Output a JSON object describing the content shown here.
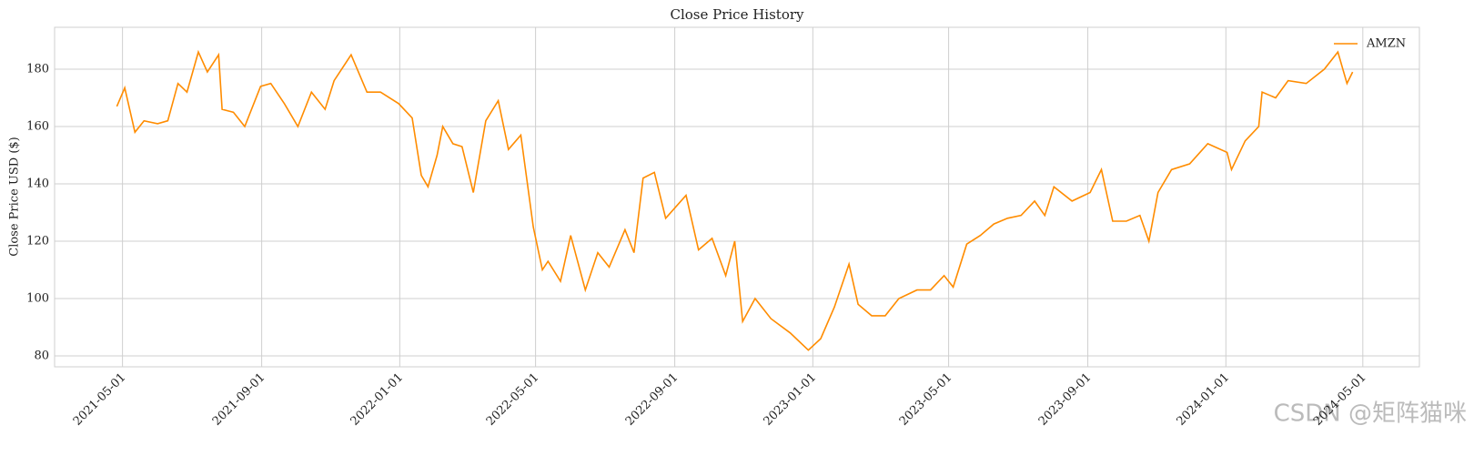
{
  "chart_data": {
    "type": "line",
    "title": "Close Price History",
    "ylabel": "Close Price USD ($)",
    "x": [
      "2021-04-26",
      "2021-05-03",
      "2021-05-12",
      "2021-05-20",
      "2021-06-01",
      "2021-06-10",
      "2021-06-19",
      "2021-06-27",
      "2021-07-07",
      "2021-07-15",
      "2021-07-25",
      "2021-07-28",
      "2021-08-07",
      "2021-08-17",
      "2021-08-31",
      "2021-09-09",
      "2021-09-21",
      "2021-10-03",
      "2021-10-15",
      "2021-10-27",
      "2021-11-04",
      "2021-11-19",
      "2021-12-03",
      "2021-12-15",
      "2021-12-31",
      "2022-01-12",
      "2022-01-20",
      "2022-01-26",
      "2022-02-03",
      "2022-02-08",
      "2022-02-17",
      "2022-02-25",
      "2022-03-07",
      "2022-03-18",
      "2022-03-29",
      "2022-04-07",
      "2022-04-18",
      "2022-04-29",
      "2022-05-07",
      "2022-05-12",
      "2022-05-23",
      "2022-06-01",
      "2022-06-14",
      "2022-06-25",
      "2022-07-05",
      "2022-07-19",
      "2022-07-27",
      "2022-08-04",
      "2022-08-14",
      "2022-08-24",
      "2022-09-11",
      "2022-09-22",
      "2022-10-04",
      "2022-10-16",
      "2022-10-24",
      "2022-10-31",
      "2022-11-11",
      "2022-11-25",
      "2022-12-12",
      "2022-12-28",
      "2023-01-08",
      "2023-01-20",
      "2023-02-02",
      "2023-02-10",
      "2023-02-22",
      "2023-03-06",
      "2023-03-18",
      "2023-04-03",
      "2023-04-15",
      "2023-04-27",
      "2023-05-05",
      "2023-05-17",
      "2023-05-29",
      "2023-06-10",
      "2023-06-22",
      "2023-07-04",
      "2023-07-16",
      "2023-07-25",
      "2023-08-02",
      "2023-08-18",
      "2023-09-03",
      "2023-09-13",
      "2023-09-23",
      "2023-10-05",
      "2023-10-17",
      "2023-10-25",
      "2023-11-02",
      "2023-11-14",
      "2023-11-30",
      "2023-12-16",
      "2024-01-02",
      "2024-01-06",
      "2024-01-18",
      "2024-01-30",
      "2024-02-02",
      "2024-02-14",
      "2024-02-25",
      "2024-03-12",
      "2024-03-28",
      "2024-04-09",
      "2024-04-17",
      "2024-04-22"
    ],
    "series": [
      {
        "name": "AMZN",
        "color": "#ff8c00",
        "values": [
          167,
          173.5,
          158,
          162,
          161,
          162,
          175,
          172,
          186,
          179,
          185,
          166,
          165,
          160,
          174,
          175,
          168,
          160,
          172,
          166,
          176,
          185,
          172,
          172,
          168,
          163,
          143,
          139,
          150,
          160,
          154,
          153,
          137,
          162,
          169,
          152,
          157,
          125,
          110,
          113,
          106,
          122,
          103,
          116,
          111,
          124,
          116,
          142,
          144,
          128,
          136,
          117,
          121,
          108,
          120,
          92,
          100,
          93,
          88,
          82,
          86,
          97,
          112,
          98,
          94,
          94,
          100,
          103,
          103,
          108,
          104,
          119,
          122,
          126,
          128,
          129,
          134,
          129,
          139,
          134,
          137,
          145,
          127,
          127,
          129,
          120,
          137,
          145,
          147,
          154,
          151,
          145,
          155,
          160,
          172,
          170,
          176,
          175,
          180,
          186,
          175,
          179
        ]
      }
    ],
    "xlim": [
      "2021-03-02",
      "2024-06-20"
    ],
    "xticks": [
      "2021-05-01",
      "2021-09-01",
      "2022-01-01",
      "2022-05-01",
      "2022-09-01",
      "2023-01-01",
      "2023-05-01",
      "2023-09-01",
      "2024-01-01",
      "2024-05-01"
    ],
    "ylim": [
      76.2,
      194.6
    ],
    "yticks": [
      80,
      100,
      120,
      140,
      160,
      180
    ],
    "grid": true,
    "legend": "upper right"
  },
  "watermark": "CSDN @矩阵猫咪"
}
